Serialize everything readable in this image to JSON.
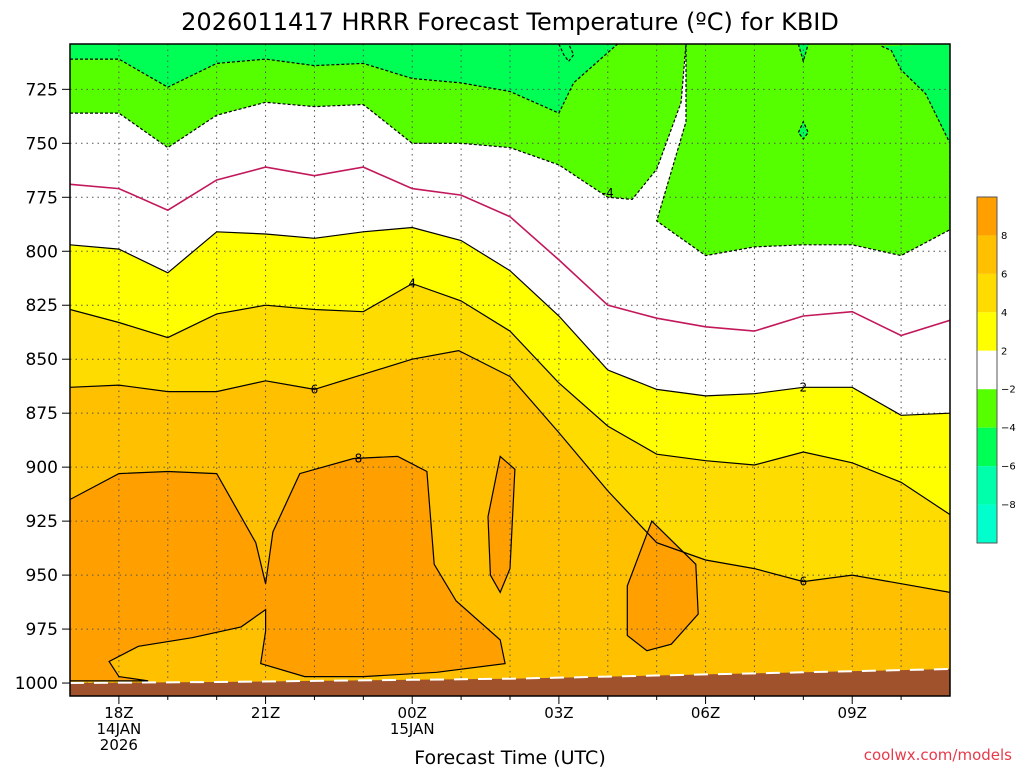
{
  "chart_data": {
    "type": "heatmap",
    "title": "2026011417 HRRR Forecast Temperature (ºC) for KBID",
    "xlabel": "Forecast Time (UTC)",
    "ylabel": "",
    "credit": "coolwx.com/models",
    "x_ticks": [
      {
        "hour": 18,
        "lines": [
          "18Z",
          "14JAN",
          "2026"
        ]
      },
      {
        "hour": 21,
        "lines": [
          "21Z"
        ]
      },
      {
        "hour": 24,
        "lines": [
          "00Z",
          "15JAN"
        ]
      },
      {
        "hour": 27,
        "lines": [
          "03Z"
        ]
      },
      {
        "hour": 30,
        "lines": [
          "06Z"
        ]
      },
      {
        "hour": 33,
        "lines": [
          "09Z"
        ]
      }
    ],
    "xlim": [
      17,
      35
    ],
    "y_ticks": [
      725,
      750,
      775,
      800,
      825,
      850,
      875,
      900,
      925,
      950,
      975,
      1000
    ],
    "ylim_hPa": [
      1006,
      704
    ],
    "colorbar": {
      "bands": [
        {
          "from": 8,
          "to": 10,
          "color": "#ffa000"
        },
        {
          "from": 6,
          "to": 8,
          "color": "#ffc000"
        },
        {
          "from": 4,
          "to": 6,
          "color": "#ffdc00"
        },
        {
          "from": 2,
          "to": 4,
          "color": "#ffff00"
        },
        {
          "from": -2,
          "to": 2,
          "color": "#ffffff"
        },
        {
          "from": -4,
          "to": -2,
          "color": "#55ff00"
        },
        {
          "from": -6,
          "to": -4,
          "color": "#00ff55"
        },
        {
          "from": -8,
          "to": -6,
          "color": "#00ffaa"
        },
        {
          "from": -10,
          "to": -8,
          "color": "#00ffcc"
        }
      ],
      "labels": [
        "8",
        "6",
        "4",
        "2",
        "−2",
        "−4",
        "−6",
        "−8"
      ]
    },
    "terrain_color": "#a0522d",
    "surface_pressure": [
      {
        "hour": 17,
        "p": 1000
      },
      {
        "hour": 20,
        "p": 999.5
      },
      {
        "hour": 22,
        "p": 999
      },
      {
        "hour": 24,
        "p": 998.5
      },
      {
        "hour": 26,
        "p": 998
      },
      {
        "hour": 28,
        "p": 997
      },
      {
        "hour": 30,
        "p": 996
      },
      {
        "hour": 32,
        "p": 995
      },
      {
        "hour": 34,
        "p": 994
      },
      {
        "hour": 35,
        "p": 993.5
      }
    ],
    "contours": [
      {
        "level": 2,
        "color": "#000000",
        "dash": false,
        "points": [
          [
            17,
            797
          ],
          [
            18,
            799
          ],
          [
            19,
            810
          ],
          [
            20,
            791
          ],
          [
            21,
            792
          ],
          [
            22,
            794
          ],
          [
            23,
            791
          ],
          [
            24,
            789
          ],
          [
            25,
            795
          ],
          [
            26,
            809
          ],
          [
            27,
            830
          ],
          [
            28,
            855
          ],
          [
            29,
            864
          ],
          [
            30,
            867
          ],
          [
            31,
            866
          ],
          [
            32,
            863
          ],
          [
            33,
            863
          ],
          [
            34,
            876
          ],
          [
            35,
            875
          ]
        ]
      },
      {
        "level": 4,
        "color": "#000000",
        "dash": false,
        "points": [
          [
            17,
            827
          ],
          [
            18,
            833
          ],
          [
            19,
            840
          ],
          [
            20,
            829
          ],
          [
            21,
            825
          ],
          [
            22,
            827
          ],
          [
            23,
            828
          ],
          [
            24,
            815
          ],
          [
            25,
            823
          ],
          [
            26,
            837
          ],
          [
            27,
            861
          ],
          [
            28,
            881
          ],
          [
            29,
            894
          ],
          [
            30,
            897
          ],
          [
            31,
            899
          ],
          [
            32,
            893
          ],
          [
            33,
            898
          ],
          [
            34,
            907
          ],
          [
            35,
            922
          ]
        ]
      },
      {
        "level": 6,
        "color": "#000000",
        "dash": false,
        "points": [
          [
            17,
            863
          ],
          [
            18,
            862
          ],
          [
            19,
            865
          ],
          [
            20,
            865
          ],
          [
            21,
            860
          ],
          [
            22,
            864
          ],
          [
            23,
            857
          ],
          [
            24,
            850
          ],
          [
            24.95,
            846
          ],
          [
            26,
            858
          ],
          [
            27,
            884
          ],
          [
            28,
            911
          ],
          [
            29,
            935
          ],
          [
            30,
            943
          ],
          [
            31,
            947
          ],
          [
            32,
            953
          ],
          [
            33,
            950
          ],
          [
            34,
            954
          ],
          [
            35,
            958
          ]
        ]
      },
      {
        "level": 8,
        "color": "#000000",
        "dash": false,
        "closed": true,
        "points": [
          [
            17,
            915
          ],
          [
            18,
            903
          ],
          [
            19,
            902
          ],
          [
            20,
            903
          ],
          [
            20.8,
            935
          ],
          [
            21,
            954
          ],
          [
            21.15,
            930
          ],
          [
            21.7,
            903
          ],
          [
            22.8,
            896
          ],
          [
            23.7,
            895
          ],
          [
            24.3,
            902
          ],
          [
            24.45,
            945
          ],
          [
            24.9,
            962
          ],
          [
            25.8,
            980
          ],
          [
            25.9,
            991
          ],
          [
            24.5,
            995
          ],
          [
            23,
            997
          ],
          [
            21.8,
            997
          ],
          [
            20.9,
            991
          ],
          [
            21,
            976
          ],
          [
            21,
            966
          ],
          [
            20.5,
            974
          ],
          [
            19.5,
            979
          ],
          [
            18.4,
            983
          ],
          [
            17.8,
            990
          ],
          [
            18.0,
            997
          ],
          [
            18.6,
            999
          ],
          [
            17,
            999
          ]
        ]
      },
      {
        "level": 8,
        "color": "#000000",
        "dash": false,
        "closed": true,
        "points": [
          [
            25.8,
            895
          ],
          [
            26.1,
            901
          ],
          [
            26.0,
            947
          ],
          [
            25.8,
            958
          ],
          [
            25.6,
            950
          ],
          [
            25.55,
            923
          ],
          [
            25.8,
            895
          ]
        ]
      },
      {
        "level": 8,
        "color": "#000000",
        "dash": false,
        "closed": true,
        "points": [
          [
            28.9,
            925
          ],
          [
            29.8,
            945
          ],
          [
            29.85,
            968
          ],
          [
            29.3,
            982
          ],
          [
            28.8,
            985
          ],
          [
            28.4,
            978
          ],
          [
            28.4,
            955
          ],
          [
            28.9,
            925
          ]
        ]
      },
      {
        "level": -2,
        "color": "#c2185b",
        "dash": false,
        "points": [
          [
            17,
            769
          ],
          [
            18,
            771
          ],
          [
            19,
            781
          ],
          [
            20,
            767
          ],
          [
            21,
            761
          ],
          [
            22,
            765
          ],
          [
            23,
            761
          ],
          [
            24,
            771
          ],
          [
            25,
            774
          ],
          [
            26,
            784
          ],
          [
            27,
            804
          ],
          [
            28,
            825
          ],
          [
            29,
            831
          ],
          [
            30,
            835
          ],
          [
            31,
            837
          ],
          [
            32,
            830
          ],
          [
            33,
            828
          ],
          [
            34,
            839
          ],
          [
            35,
            832
          ]
        ]
      },
      {
        "level": -4,
        "color": "#000000",
        "dash": true,
        "points": [
          [
            17,
            736
          ],
          [
            18,
            736
          ],
          [
            19,
            752
          ],
          [
            20,
            737
          ],
          [
            21,
            731
          ],
          [
            22,
            733
          ],
          [
            23,
            732
          ],
          [
            24,
            750
          ],
          [
            25,
            750
          ],
          [
            26,
            752
          ],
          [
            27,
            760
          ],
          [
            28,
            775
          ],
          [
            28.5,
            776
          ],
          [
            29,
            762
          ],
          [
            29.5,
            731
          ],
          [
            29.6,
            704
          ]
        ]
      },
      {
        "level": -4,
        "color": "#000000",
        "dash": true,
        "points": [
          [
            29.6,
            704
          ],
          [
            29.6,
            740
          ],
          [
            29.0,
            786
          ],
          [
            30,
            802
          ],
          [
            31,
            798
          ],
          [
            32,
            797
          ],
          [
            33,
            797
          ],
          [
            34,
            802
          ],
          [
            35,
            790
          ],
          [
            35,
            750
          ]
        ]
      },
      {
        "level": -4,
        "color": "#000000",
        "dash": true,
        "points": [
          [
            17,
            711
          ],
          [
            18,
            711
          ],
          [
            19,
            724
          ],
          [
            20,
            713
          ],
          [
            21,
            711
          ],
          [
            22,
            714
          ],
          [
            23,
            713
          ],
          [
            24,
            720
          ],
          [
            25,
            722
          ],
          [
            26,
            726
          ],
          [
            27,
            736
          ],
          [
            27.3,
            722
          ],
          [
            27.8,
            712
          ],
          [
            28.2,
            704
          ]
        ]
      },
      {
        "level": -6,
        "color": "#000000",
        "dash": true,
        "points": [
          [
            27.0,
            704
          ],
          [
            27.1,
            709
          ],
          [
            27.2,
            712
          ],
          [
            27.3,
            709
          ],
          [
            27.2,
            704
          ]
        ]
      },
      {
        "level": -6,
        "color": "#000000",
        "dash": true,
        "points": [
          [
            33.6,
            705
          ],
          [
            33.8,
            707
          ],
          [
            34,
            716
          ],
          [
            34.5,
            727
          ],
          [
            35,
            750
          ]
        ]
      },
      {
        "level": -6,
        "color": "#000000",
        "dash": true,
        "points": [
          [
            31.9,
            745
          ],
          [
            32.0,
            740
          ],
          [
            32.1,
            745
          ],
          [
            32.0,
            748
          ],
          [
            31.9,
            745
          ]
        ]
      },
      {
        "level": -6,
        "color": "#000000",
        "dash": true,
        "points": [
          [
            31.9,
            704
          ],
          [
            32.0,
            712
          ],
          [
            32.1,
            704
          ]
        ]
      }
    ],
    "contour_labels": [
      {
        "text": "-4",
        "hour": 28.0,
        "p": 773
      },
      {
        "text": "4",
        "hour": 24.0,
        "p": 815
      },
      {
        "text": "6",
        "hour": 22.0,
        "p": 864
      },
      {
        "text": "8",
        "hour": 22.9,
        "p": 896
      },
      {
        "text": "2",
        "hour": 32.0,
        "p": 863
      },
      {
        "text": "6",
        "hour": 32.0,
        "p": 953
      }
    ]
  }
}
